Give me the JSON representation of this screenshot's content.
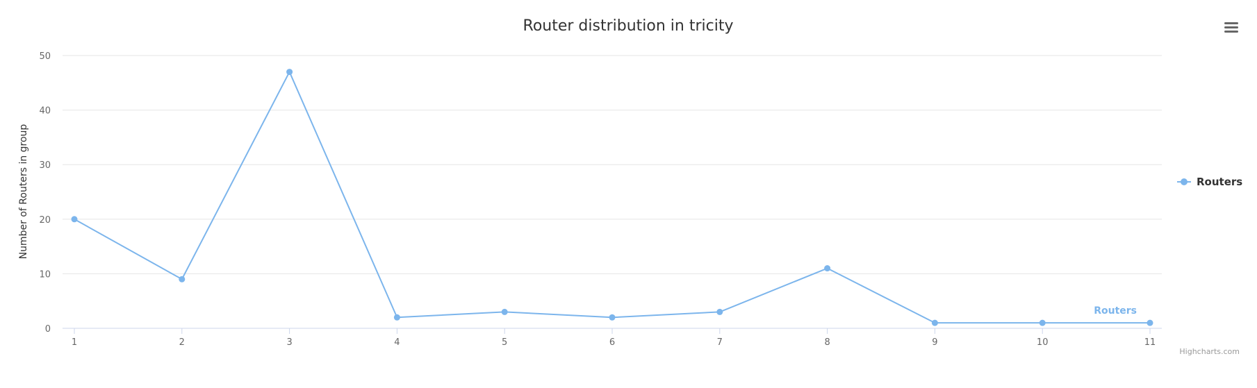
{
  "colors": {
    "series": "#7cb5ec"
  },
  "menu": {
    "icon": "hamburger-menu-icon"
  },
  "credits": "Highcharts.com",
  "chart_data": {
    "type": "line",
    "title": "Router distribution in tricity",
    "xlabel": "",
    "ylabel": "Number of Routers in group",
    "x": [
      1,
      2,
      3,
      4,
      5,
      6,
      7,
      8,
      9,
      10,
      11
    ],
    "x_tick_labels": [
      "1",
      "2",
      "3",
      "4",
      "5",
      "6",
      "7",
      "8",
      "9",
      "10",
      "11"
    ],
    "ylim": [
      0,
      50
    ],
    "y_ticks": [
      0,
      10,
      20,
      30,
      40,
      50
    ],
    "grid": true,
    "legend_position": "right",
    "series": [
      {
        "name": "Routers",
        "values": [
          20,
          9,
          47,
          2,
          3,
          2,
          3,
          11,
          1,
          1,
          1
        ],
        "end_label": "Routers"
      }
    ]
  }
}
